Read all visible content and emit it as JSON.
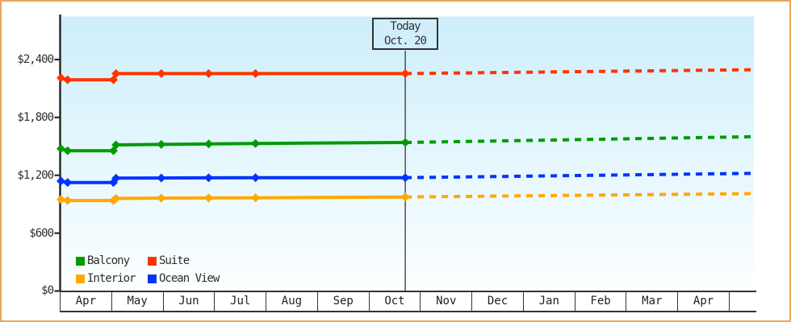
{
  "page": {
    "description": "Cabin price history and forecast line chart",
    "border_color": "#eba75a",
    "plot_bg_top": "#cdeefb",
    "plot_bg_bottom": "#fcffff",
    "axis_color": "#2b2b2b",
    "today_line_color": "#444444"
  },
  "chart_data": {
    "type": "line",
    "title": "",
    "x_axis": {
      "unit": "months_from_apr_1",
      "months": [
        "Apr",
        "May",
        "Jun",
        "Jul",
        "Aug",
        "Sep",
        "Oct",
        "Nov",
        "Dec",
        "Jan",
        "Feb",
        "Mar",
        "Apr"
      ]
    },
    "y_axis": {
      "unit": "USD",
      "tick_labels": [
        "$2,400",
        "$1,800",
        "$1,200",
        "$600",
        "$0"
      ],
      "tick_values": [
        2400,
        1800,
        1200,
        600,
        0
      ],
      "range": [
        0,
        2850
      ],
      "grid": false
    },
    "today_marker": {
      "label_line1": "Today",
      "label_line2": "Oct. 20",
      "x": 6.69
    },
    "series": [
      {
        "name": "Suite",
        "color": "#ff3300",
        "points_solid_history": [
          [
            0,
            2210
          ],
          [
            0.13,
            2190
          ],
          [
            1.02,
            2190
          ],
          [
            1.07,
            2255
          ],
          [
            1.95,
            2255
          ],
          [
            2.87,
            2255
          ],
          [
            3.78,
            2255
          ],
          [
            6.69,
            2255
          ]
        ],
        "points_dashed_forecast": [
          [
            6.69,
            2255
          ],
          [
            13.45,
            2295
          ]
        ]
      },
      {
        "name": "Balcony",
        "color": "#009b00",
        "points_solid_history": [
          [
            0,
            1475
          ],
          [
            0.13,
            1455
          ],
          [
            1.02,
            1455
          ],
          [
            1.07,
            1515
          ],
          [
            1.95,
            1520
          ],
          [
            2.87,
            1525
          ],
          [
            3.78,
            1530
          ],
          [
            6.69,
            1540
          ]
        ],
        "points_dashed_forecast": [
          [
            6.69,
            1540
          ],
          [
            13.45,
            1600
          ]
        ]
      },
      {
        "name": "Ocean View",
        "color": "#0033ff",
        "points_solid_history": [
          [
            0,
            1140
          ],
          [
            0.13,
            1125
          ],
          [
            1.02,
            1125
          ],
          [
            1.07,
            1170
          ],
          [
            1.95,
            1172
          ],
          [
            2.87,
            1174
          ],
          [
            3.78,
            1175
          ],
          [
            6.69,
            1175
          ]
        ],
        "points_dashed_forecast": [
          [
            6.69,
            1175
          ],
          [
            13.45,
            1220
          ]
        ]
      },
      {
        "name": "Interior",
        "color": "#ffa800",
        "points_solid_history": [
          [
            0,
            950
          ],
          [
            0.13,
            938
          ],
          [
            1.02,
            938
          ],
          [
            1.07,
            960
          ],
          [
            1.95,
            963
          ],
          [
            2.87,
            965
          ],
          [
            3.78,
            966
          ],
          [
            6.69,
            975
          ]
        ],
        "points_dashed_forecast": [
          [
            6.69,
            975
          ],
          [
            13.45,
            1010
          ]
        ]
      }
    ],
    "legend": {
      "position": "bottom-left",
      "rows": [
        [
          {
            "label": "Balcony",
            "color": "#009b00"
          },
          {
            "label": "Suite",
            "color": "#ff3300"
          }
        ],
        [
          {
            "label": "Interior",
            "color": "#ffa800"
          },
          {
            "label": "Ocean View",
            "color": "#0033ff"
          }
        ]
      ]
    }
  }
}
